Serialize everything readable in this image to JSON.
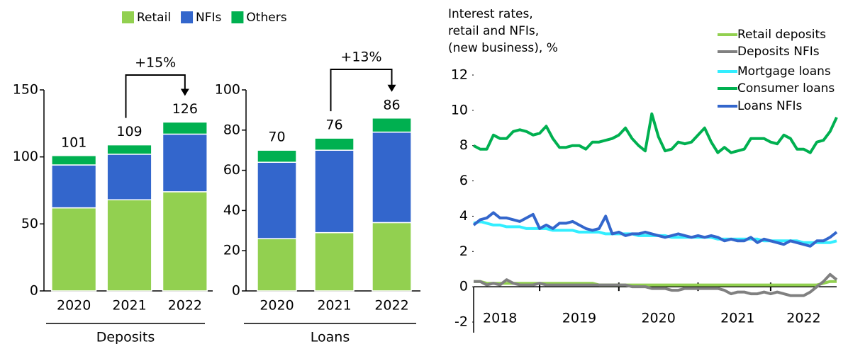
{
  "chart_data": [
    {
      "type": "bar",
      "stacked": true,
      "xlabel": "Deposits",
      "annotation": "+15%",
      "categories": [
        "2020",
        "2021",
        "2022"
      ],
      "series": [
        {
          "name": "Retail",
          "color": "#92d050",
          "values": [
            62,
            68,
            74
          ]
        },
        {
          "name": "NFIs",
          "color": "#3366cc",
          "values": [
            32,
            34,
            43
          ]
        },
        {
          "name": "Others",
          "color": "#00b050",
          "values": [
            7,
            7,
            9
          ]
        }
      ],
      "totals": [
        101,
        109,
        126
      ],
      "ylim": [
        0,
        150
      ],
      "yticks": [
        0,
        50,
        100,
        150
      ]
    },
    {
      "type": "bar",
      "stacked": true,
      "xlabel": "Loans",
      "annotation": "+13%",
      "categories": [
        "2020",
        "2021",
        "2022"
      ],
      "series": [
        {
          "color": "#92d050",
          "values": [
            26,
            29,
            34
          ]
        },
        {
          "color": "#3366cc",
          "values": [
            38,
            41,
            45
          ]
        },
        {
          "color": "#00b050",
          "values": [
            6,
            6,
            7
          ]
        }
      ],
      "totals": [
        70,
        76,
        86
      ],
      "ylim": [
        0,
        100
      ],
      "yticks": [
        0,
        20,
        40,
        60,
        80,
        100
      ]
    },
    {
      "type": "line",
      "title": [
        "Interest rates,",
        "retail and NFIs,",
        "(new business), %"
      ],
      "categories": [
        null,
        null,
        null,
        null,
        "2018",
        null,
        null,
        null,
        null,
        null,
        null,
        null,
        null,
        null,
        null,
        null,
        "2019",
        null,
        null,
        null,
        null,
        null,
        null,
        null,
        null,
        null,
        null,
        null,
        "2020",
        null,
        null,
        null,
        null,
        null,
        null,
        null,
        null,
        null,
        null,
        null,
        "2021",
        null,
        null,
        null,
        null,
        null,
        null,
        null,
        null,
        null,
        "2022",
        null,
        null,
        null,
        null,
        null
      ],
      "series": [
        {
          "name": "Retail deposits",
          "color": "#92d050",
          "values": [
            0.3,
            0.3,
            0.2,
            0.2,
            0.2,
            0.2,
            0.2,
            0.2,
            0.2,
            0.2,
            0.2,
            0.2,
            0.2,
            0.2,
            0.2,
            0.2,
            0.2,
            0.2,
            0.2,
            0.1,
            0.1,
            0.1,
            0.1,
            0.1,
            0.1,
            0.1,
            0.1,
            0.1,
            0.1,
            0.1,
            0.1,
            0.1,
            0.1,
            0.1,
            0.1,
            0.1,
            0.1,
            0.1,
            0.1,
            0.1,
            0.1,
            0.1,
            0.1,
            0.1,
            0.1,
            0.1,
            0.1,
            0.1,
            0.1,
            0.1,
            0.1,
            0.1,
            0.1,
            0.2,
            0.3,
            0.3
          ]
        },
        {
          "name": "Deposits NFIs",
          "color": "#808080",
          "values": [
            0.3,
            0.3,
            0.1,
            0.2,
            0.1,
            0.4,
            0.2,
            0.1,
            0.1,
            0.1,
            0.2,
            0.1,
            0.1,
            0.1,
            0.1,
            0.1,
            0.1,
            0.1,
            0.1,
            0.1,
            0.1,
            0.1,
            0.1,
            0.1,
            0.0,
            0.0,
            0.0,
            -0.1,
            -0.1,
            -0.1,
            -0.2,
            -0.2,
            -0.1,
            -0.1,
            -0.1,
            -0.1,
            -0.1,
            -0.1,
            -0.2,
            -0.4,
            -0.3,
            -0.3,
            -0.4,
            -0.4,
            -0.3,
            -0.4,
            -0.3,
            -0.4,
            -0.5,
            -0.5,
            -0.5,
            -0.3,
            0.0,
            0.3,
            0.7,
            0.4
          ]
        },
        {
          "name": "Mortgage loans",
          "color": "#33eeff",
          "values": [
            3.6,
            3.7,
            3.6,
            3.5,
            3.5,
            3.4,
            3.4,
            3.4,
            3.3,
            3.3,
            3.3,
            3.3,
            3.2,
            3.2,
            3.2,
            3.2,
            3.1,
            3.1,
            3.1,
            3.1,
            3.0,
            3.0,
            3.0,
            3.0,
            3.0,
            2.9,
            2.9,
            2.9,
            2.9,
            2.9,
            2.8,
            2.8,
            2.8,
            2.8,
            2.8,
            2.8,
            2.8,
            2.7,
            2.7,
            2.7,
            2.7,
            2.7,
            2.7,
            2.7,
            2.6,
            2.6,
            2.6,
            2.6,
            2.6,
            2.6,
            2.5,
            2.5,
            2.5,
            2.5,
            2.5,
            2.6
          ]
        },
        {
          "name": "Consumer loans",
          "color": "#00b050",
          "values": [
            8.0,
            7.8,
            7.8,
            8.6,
            8.4,
            8.4,
            8.8,
            8.9,
            8.8,
            8.6,
            8.7,
            9.1,
            8.4,
            7.9,
            7.9,
            8.0,
            8.0,
            7.8,
            8.2,
            8.2,
            8.3,
            8.4,
            8.6,
            9.0,
            8.4,
            8.0,
            7.7,
            9.8,
            8.5,
            7.7,
            7.8,
            8.2,
            8.1,
            8.2,
            8.6,
            9.0,
            8.2,
            7.6,
            7.9,
            7.6,
            7.7,
            7.8,
            8.4,
            8.4,
            8.4,
            8.2,
            8.1,
            8.6,
            8.4,
            7.8,
            7.8,
            7.6,
            8.2,
            8.3,
            8.8,
            9.6
          ]
        },
        {
          "name": "Loans NFIs",
          "color": "#3366cc",
          "values": [
            3.5,
            3.8,
            3.9,
            4.2,
            3.9,
            3.9,
            3.8,
            3.7,
            3.9,
            4.1,
            3.3,
            3.5,
            3.3,
            3.6,
            3.6,
            3.7,
            3.5,
            3.3,
            3.2,
            3.3,
            4.0,
            3.0,
            3.1,
            2.9,
            3.0,
            3.0,
            3.1,
            3.0,
            2.9,
            2.8,
            2.9,
            3.0,
            2.9,
            2.8,
            2.9,
            2.8,
            2.9,
            2.8,
            2.6,
            2.7,
            2.6,
            2.6,
            2.8,
            2.5,
            2.7,
            2.6,
            2.5,
            2.4,
            2.6,
            2.5,
            2.4,
            2.3,
            2.6,
            2.6,
            2.8,
            3.1
          ]
        }
      ],
      "ylim": [
        -2,
        12
      ],
      "yticks": [
        -2,
        0,
        2,
        4,
        6,
        8,
        10,
        12
      ]
    }
  ]
}
